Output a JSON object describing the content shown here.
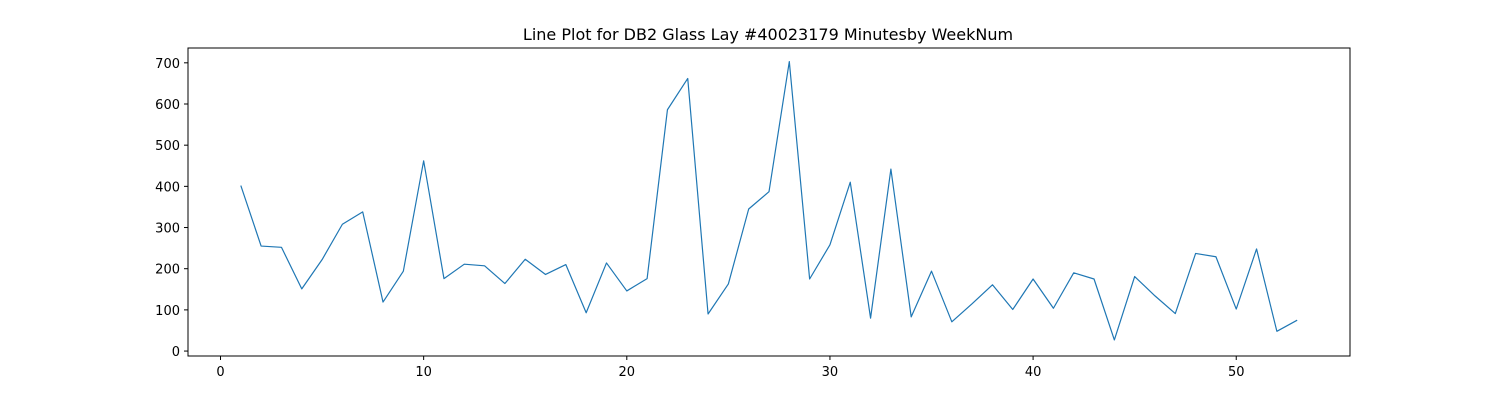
{
  "chart_data": {
    "type": "line",
    "title": "Line Plot for DB2 Glass Lay #40023179 Minutesby WeekNum",
    "xlabel": "",
    "ylabel": "",
    "xlim": [
      -1.6,
      55.6
    ],
    "ylim": [
      -12,
      736
    ],
    "xticks": [
      0,
      10,
      20,
      30,
      40,
      50
    ],
    "yticks": [
      0,
      100,
      200,
      300,
      400,
      500,
      600,
      700
    ],
    "grid": false,
    "line_color": "#1f77b4",
    "x": [
      1,
      2,
      3,
      4,
      5,
      6,
      7,
      8,
      9,
      10,
      11,
      12,
      13,
      14,
      15,
      16,
      17,
      18,
      19,
      20,
      21,
      22,
      23,
      24,
      25,
      26,
      27,
      28,
      29,
      30,
      31,
      32,
      33,
      34,
      35,
      36,
      37,
      38,
      39,
      40,
      41,
      42,
      43,
      44,
      45,
      46,
      47,
      48,
      49,
      50,
      51,
      52,
      53
    ],
    "y": [
      402,
      255,
      252,
      151,
      222,
      308,
      338,
      119,
      194,
      462,
      176,
      211,
      207,
      164,
      223,
      186,
      210,
      93,
      214,
      146,
      176,
      586,
      662,
      90,
      163,
      345,
      387,
      703,
      175,
      258,
      410,
      80,
      442,
      83,
      194,
      71,
      115,
      161,
      101,
      175,
      104,
      190,
      175,
      27,
      181,
      134,
      91,
      237,
      229,
      102,
      248,
      48,
      75
    ]
  }
}
